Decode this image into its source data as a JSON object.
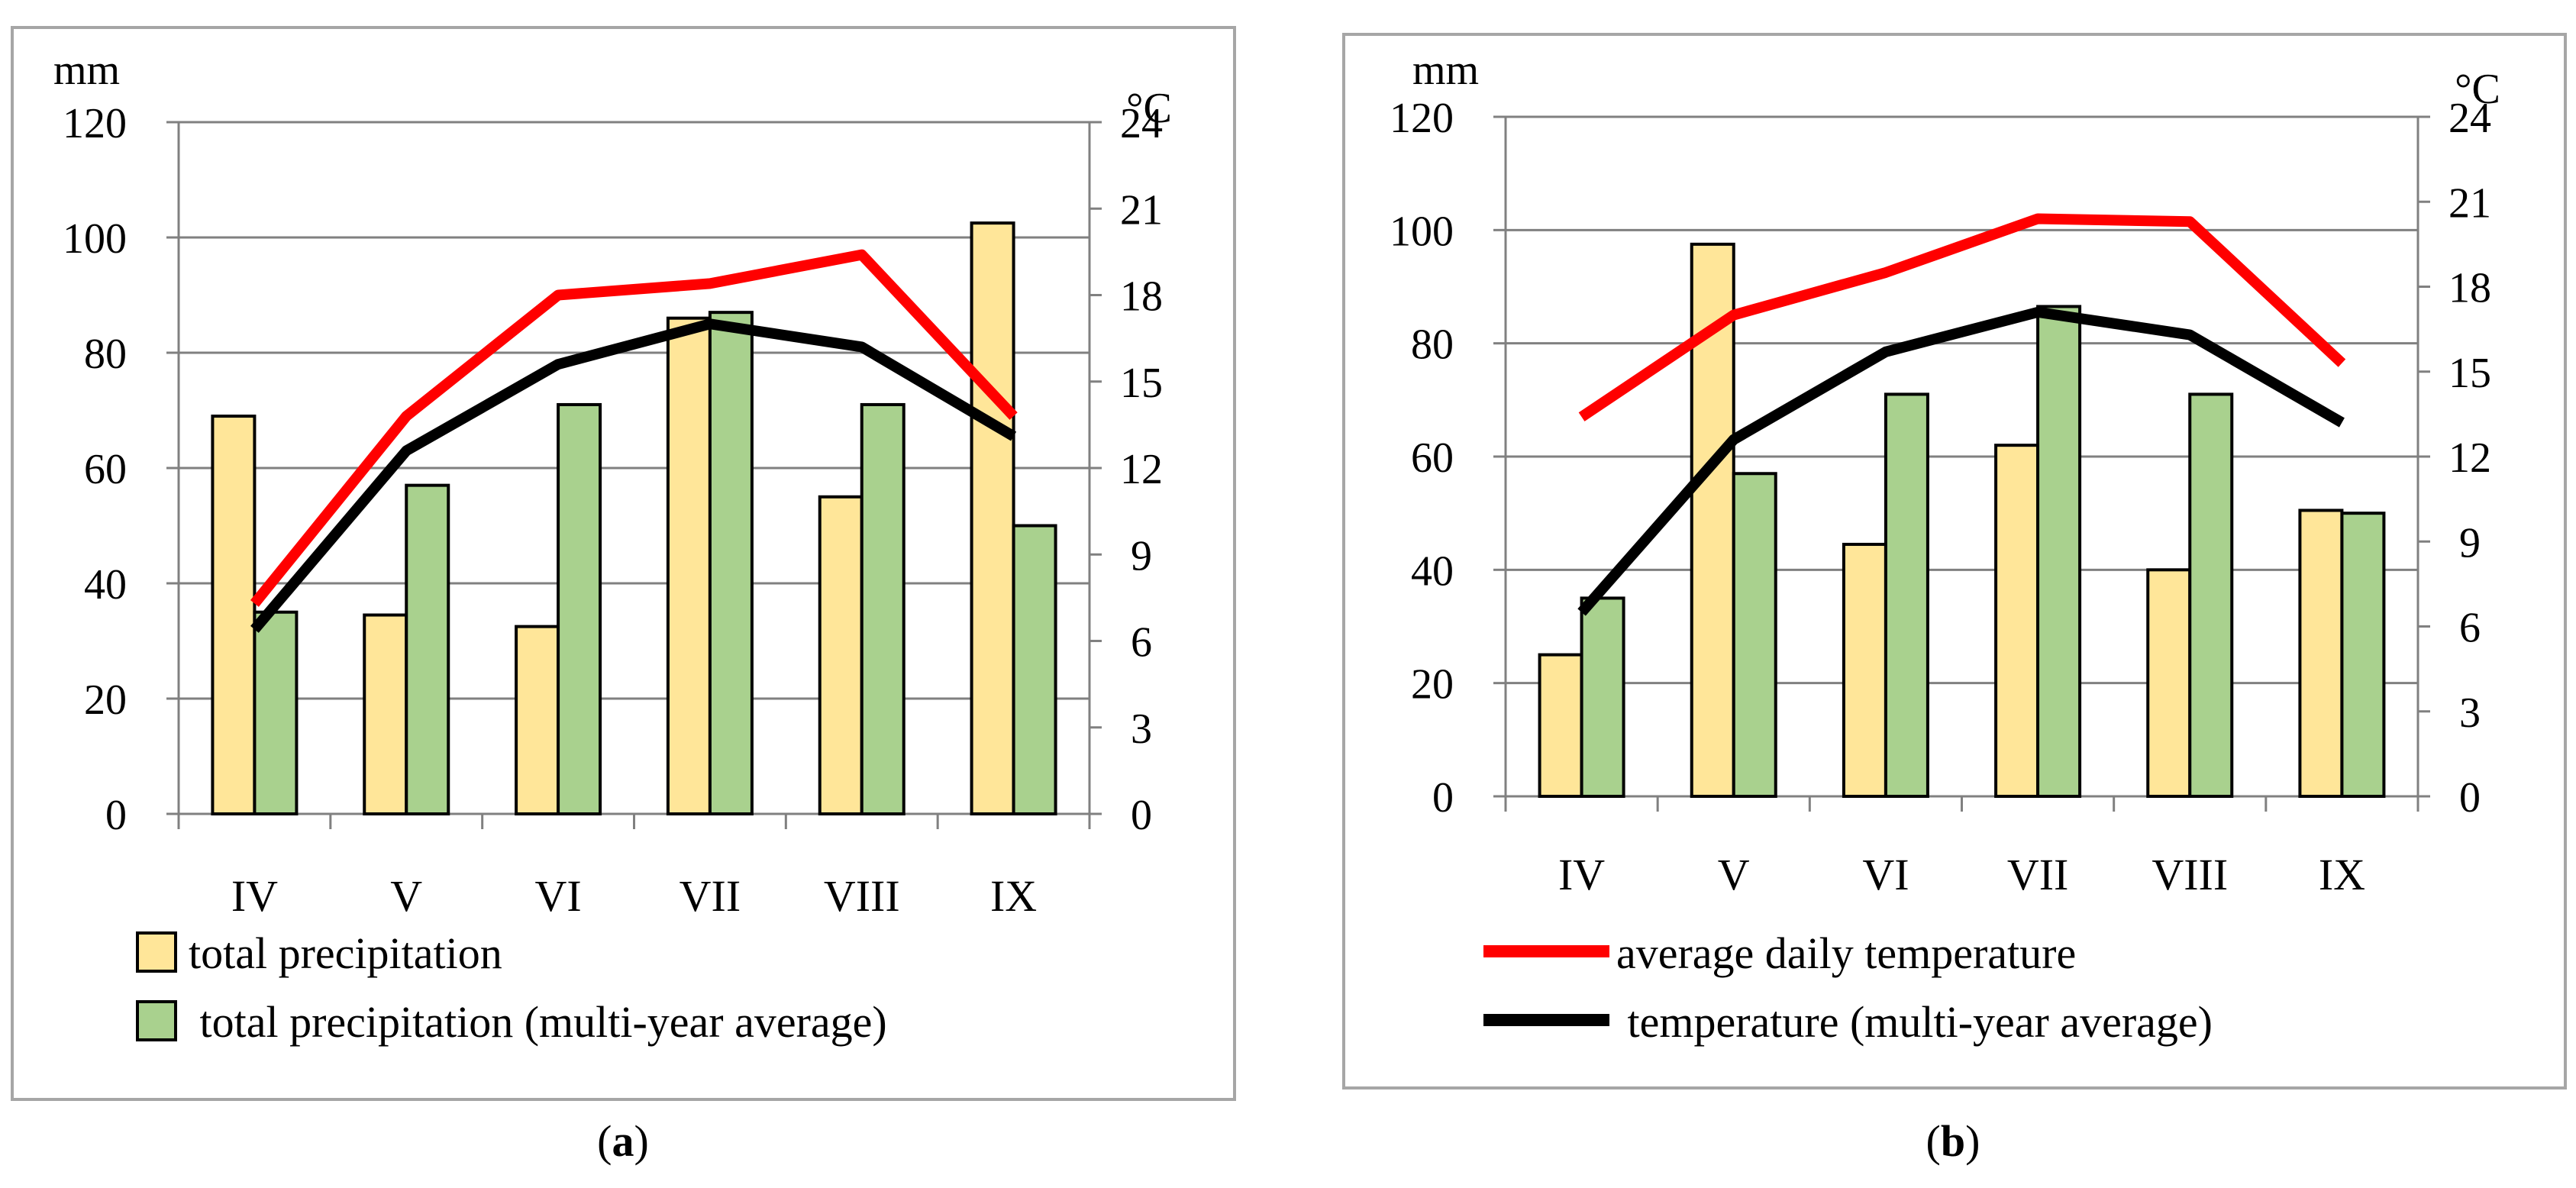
{
  "colors": {
    "precip": "#FFE699",
    "precip_avg": "#A9D18E",
    "temp": "#FF0000",
    "temp_avg": "#000000",
    "frame": "#A6A6A6",
    "grid": "#808080"
  },
  "chart_data": [
    {
      "panel_label": "a",
      "type": "bar+line",
      "categories": [
        "IV",
        "V",
        "VI",
        "VII",
        "VIII",
        "IX"
      ],
      "left_axis": {
        "unit": "mm",
        "ylim": [
          0,
          120
        ],
        "ticks": [
          "0",
          "20",
          "40",
          "60",
          "80",
          "100",
          "120"
        ]
      },
      "right_axis": {
        "unit": "°C",
        "ylim": [
          0,
          24
        ],
        "ticks": [
          "0",
          "3",
          "6",
          "9",
          "12",
          "15",
          "18",
          "21",
          "24"
        ]
      },
      "bars": [
        {
          "name": "total precipitation",
          "color_key": "precip",
          "values": [
            69,
            34.5,
            32.5,
            86,
            55,
            102.5
          ]
        },
        {
          "name": "total precipitation (multi-year average)",
          "color_key": "precip_avg",
          "values": [
            35,
            57,
            71,
            87,
            71,
            50
          ]
        }
      ],
      "lines": [
        {
          "name": "average daily temperature",
          "color_key": "temp",
          "values": [
            7.3,
            13.8,
            18.0,
            18.4,
            19.4,
            13.8
          ]
        },
        {
          "name": "temperature (multi-year average)",
          "color_key": "temp_avg",
          "values": [
            6.4,
            12.6,
            15.6,
            17.0,
            16.2,
            13.1
          ]
        }
      ],
      "legend": [
        {
          "label": "total precipitation",
          "kind": "box",
          "color_key": "precip"
        },
        {
          "label": " total precipitation (multi-year average)",
          "kind": "box",
          "color_key": "precip_avg"
        }
      ]
    },
    {
      "panel_label": "b",
      "type": "bar+line",
      "categories": [
        "IV",
        "V",
        "VI",
        "VII",
        "VIII",
        "IX"
      ],
      "left_axis": {
        "unit": "mm",
        "ylim": [
          0,
          120
        ],
        "ticks": [
          "0",
          "20",
          "40",
          "60",
          "80",
          "100",
          "120"
        ]
      },
      "right_axis": {
        "unit": "°C",
        "ylim": [
          0,
          24
        ],
        "ticks": [
          "0",
          "3",
          "6",
          "9",
          "12",
          "15",
          "18",
          "21",
          "24"
        ]
      },
      "bars": [
        {
          "name": "total precipitation",
          "color_key": "precip",
          "values": [
            25,
            97.5,
            44.5,
            62,
            40,
            50.5
          ]
        },
        {
          "name": "total precipitation (multi-year average)",
          "color_key": "precip_avg",
          "values": [
            35,
            57,
            71,
            86.5,
            71,
            50
          ]
        }
      ],
      "lines": [
        {
          "name": "average daily temperature",
          "color_key": "temp",
          "values": [
            13.4,
            17.0,
            18.5,
            20.4,
            20.3,
            15.3
          ]
        },
        {
          "name": "temperature (multi-year average)",
          "color_key": "temp_avg",
          "values": [
            6.5,
            12.6,
            15.7,
            17.1,
            16.3,
            13.2
          ]
        }
      ],
      "legend": [
        {
          "label": "average daily temperature",
          "kind": "line",
          "color_key": "temp"
        },
        {
          "label": " temperature (multi-year average)",
          "kind": "line",
          "color_key": "temp_avg"
        }
      ]
    }
  ]
}
